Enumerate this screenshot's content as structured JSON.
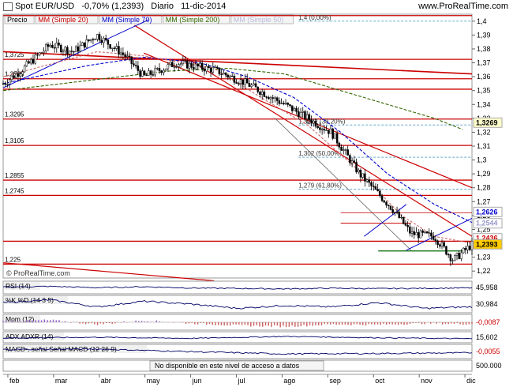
{
  "header": {
    "instrument": "Spot EUR/USD",
    "change": "-0,70% (1,2393)",
    "period": "Diario",
    "date": "11-dic-2014",
    "site": "www.ProRealTime.com"
  },
  "main_panel": {
    "legend": [
      {
        "label": "Precio",
        "color": "#000000"
      },
      {
        "label": "MM (Simple 20)",
        "color": "#cc0000"
      },
      {
        "label": "MM (Simple 70)",
        "color": "#0000cc"
      },
      {
        "label": "MM (Simple 200)",
        "color": "#336600"
      },
      {
        "label": "MM (Simple 50)",
        "color": "#bbbbdd"
      }
    ],
    "watermark": "© ProRealTime.com"
  },
  "chart_data": [
    {
      "type": "candlestick",
      "panel": "price",
      "title": "Spot EUR/USD Diario",
      "x_ticks": [
        "feb",
        "mar",
        "abr",
        "may",
        "jun",
        "jul",
        "ago",
        "sep",
        "oct",
        "nov",
        "dic"
      ],
      "y_ticks": [
        "1,4",
        "1,39",
        "1,38",
        "1,37",
        "1,36",
        "1,35",
        "1,34",
        "1,33",
        "1,32",
        "1,31",
        "1,3",
        "1,29",
        "1,28",
        "1,27",
        "1,26",
        "1,25",
        "1,24",
        "1,23",
        "1,22"
      ],
      "ylim": [
        1.215,
        1.405
      ],
      "path_x": [
        0,
        0.04,
        0.1,
        0.15,
        0.2,
        0.26,
        0.3,
        0.37,
        0.45,
        0.52,
        0.6,
        0.7,
        0.76,
        0.83,
        0.87,
        0.92,
        0.96,
        1.0
      ],
      "path_y": [
        1.355,
        1.365,
        1.383,
        1.378,
        1.39,
        1.375,
        1.36,
        1.37,
        1.365,
        1.355,
        1.34,
        1.32,
        1.29,
        1.265,
        1.247,
        1.245,
        1.228,
        1.239
      ],
      "sma20": {
        "x": [
          0,
          0.2,
          0.3,
          0.45,
          0.55,
          0.65,
          0.75,
          0.85,
          0.92,
          1.0
        ],
        "y": [
          1.36,
          1.378,
          1.375,
          1.366,
          1.345,
          1.325,
          1.295,
          1.26,
          1.245,
          1.24
        ]
      },
      "sma70": {
        "x": [
          0,
          0.18,
          0.3,
          0.42,
          0.52,
          0.62,
          0.72,
          0.82,
          0.92,
          1.0
        ],
        "y": [
          1.355,
          1.368,
          1.374,
          1.37,
          1.36,
          1.345,
          1.32,
          1.29,
          1.268,
          1.255
        ]
      },
      "sma200": {
        "x": [
          0,
          0.2,
          0.35,
          0.48,
          0.6,
          0.72,
          0.82,
          0.92,
          0.98
        ],
        "y": [
          1.35,
          1.358,
          1.364,
          1.366,
          1.362,
          1.35,
          1.34,
          1.33,
          1.322
        ]
      },
      "horizontal_levels": [
        {
          "value": 1.3725,
          "label": "1,3725"
        },
        {
          "value": 1.3585,
          "label": "1,3585"
        },
        {
          "value": 1.3295,
          "label": "1,3295"
        },
        {
          "value": 1.3105,
          "label": "1,3105"
        },
        {
          "value": 1.2855,
          "label": "1,2855"
        },
        {
          "value": 1.2745,
          "label": "1,2745"
        },
        {
          "value": 1.225,
          "label": "1,225"
        },
        {
          "value": 1.404,
          "label": ""
        },
        {
          "value": 1.351,
          "label": ""
        },
        {
          "value": 1.2415,
          "label": ""
        }
      ],
      "fib_levels": [
        {
          "value": 1.4,
          "label": "1,4 (0,00%)"
        },
        {
          "value": 1.3252,
          "label": "1,3252 (38,20%)"
        },
        {
          "value": 1.302,
          "label": "1,302 (50,00%)"
        },
        {
          "value": 1.279,
          "label": "1,279 (61,80%)"
        }
      ],
      "price_tags": [
        {
          "value": 1.3269,
          "label": "1,3269",
          "bg": "#ffffcc",
          "fg": "#000000"
        },
        {
          "value": 1.2626,
          "label": "1,2626",
          "bg": "#ffffff",
          "fg": "#0000cc"
        },
        {
          "value": 1.2544,
          "label": "1,2544",
          "bg": "#ffffff",
          "fg": "#9999cc"
        },
        {
          "value": 1.2436,
          "label": "1,2436",
          "bg": "#ffffff",
          "fg": "#cc0000"
        },
        {
          "value": 1.2393,
          "label": "1,2393",
          "bg": "#ffcc00",
          "fg": "#000000"
        }
      ]
    },
    {
      "type": "line",
      "panel": "RSI",
      "title": "RSI (14)",
      "last_value": "45,958",
      "x": [
        0,
        0.1,
        0.2,
        0.3,
        0.4,
        0.5,
        0.6,
        0.7,
        0.8,
        0.9,
        1.0
      ],
      "y": [
        55,
        62,
        48,
        58,
        45,
        40,
        35,
        42,
        38,
        41,
        46
      ],
      "ylim": [
        0,
        100
      ]
    },
    {
      "type": "line",
      "panel": "Stochastic",
      "labels": [
        "%K",
        "%D (14 3 5)"
      ],
      "last_value": "30,984",
      "x": [
        0,
        0.1,
        0.2,
        0.3,
        0.4,
        0.5,
        0.6,
        0.7,
        0.8,
        0.9,
        1.0
      ],
      "y": [
        60,
        80,
        30,
        70,
        50,
        20,
        40,
        30,
        60,
        20,
        31
      ],
      "ylim": [
        0,
        100
      ]
    },
    {
      "type": "bar",
      "panel": "Momentum",
      "title": "Mom (12)",
      "last_value": "-0,0087",
      "x": [
        0,
        0.1,
        0.2,
        0.3,
        0.4,
        0.5,
        0.6,
        0.7,
        0.8,
        0.9,
        1.0
      ],
      "y": [
        0.005,
        0.01,
        -0.01,
        0.008,
        -0.005,
        -0.015,
        -0.02,
        -0.01,
        -0.012,
        -0.005,
        -0.0087
      ],
      "ylim": [
        -0.03,
        0.03
      ]
    },
    {
      "type": "line",
      "panel": "ADX",
      "labels": [
        "ADX",
        "ADXR (14)"
      ],
      "last_value": "15,602",
      "x": [
        0,
        0.2,
        0.4,
        0.6,
        0.8,
        1.0
      ],
      "y": [
        20,
        25,
        18,
        30,
        22,
        15.6
      ],
      "ylim": [
        0,
        50
      ]
    },
    {
      "type": "line",
      "panel": "MACD",
      "labels": [
        "MACD-, señal",
        "Señal",
        "MACD (12 26 9)"
      ],
      "last_value": "-0,0055",
      "x": [
        0,
        0.2,
        0.4,
        0.6,
        0.8,
        1.0
      ],
      "y": [
        0.002,
        0.003,
        -0.003,
        -0.008,
        -0.007,
        -0.0055
      ],
      "ylim": [
        -0.015,
        0.01
      ]
    },
    {
      "type": "bar",
      "panel": "Volume",
      "message": "No disponible en este nivel de acceso a datos",
      "last_value": "500.000",
      "values": []
    }
  ]
}
